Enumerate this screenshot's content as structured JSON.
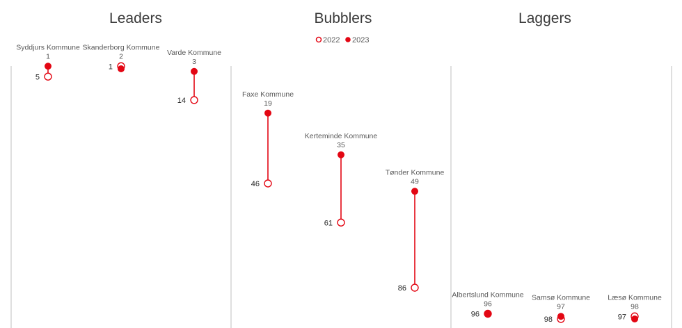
{
  "chart_data": {
    "type": "dumbbell",
    "y_axis": "rank",
    "legend": {
      "placement": "top-center",
      "items": [
        {
          "label": "2022",
          "marker": "hollow-circle",
          "color": "#e30613"
        },
        {
          "label": "2023",
          "marker": "filled-circle",
          "color": "#e30613"
        }
      ]
    },
    "panels": [
      {
        "title": "Leaders",
        "items": [
          {
            "municipality": "Syddjurs Kommune",
            "rank_2022": 5,
            "rank_2023": 1
          },
          {
            "municipality": "Skanderborg Kommune",
            "rank_2022": 1,
            "rank_2023": 2
          },
          {
            "municipality": "Varde Kommune",
            "rank_2022": 14,
            "rank_2023": 3
          }
        ]
      },
      {
        "title": "Bubblers",
        "items": [
          {
            "municipality": "Faxe Kommune",
            "rank_2022": 46,
            "rank_2023": 19
          },
          {
            "municipality": "Kerteminde Kommune",
            "rank_2022": 61,
            "rank_2023": 35
          },
          {
            "municipality": "Tønder Kommune",
            "rank_2022": 86,
            "rank_2023": 49
          }
        ]
      },
      {
        "title": "Laggers",
        "items": [
          {
            "municipality": "Albertslund Kommune",
            "rank_2022": 96,
            "rank_2023": 96
          },
          {
            "municipality": "Samsø Kommune",
            "rank_2022": 98,
            "rank_2023": 97
          },
          {
            "municipality": "Læsø Kommune",
            "rank_2022": 97,
            "rank_2023": 98
          }
        ]
      }
    ],
    "colors": {
      "accent": "#e30613",
      "divider": "#bfbfbf"
    }
  }
}
